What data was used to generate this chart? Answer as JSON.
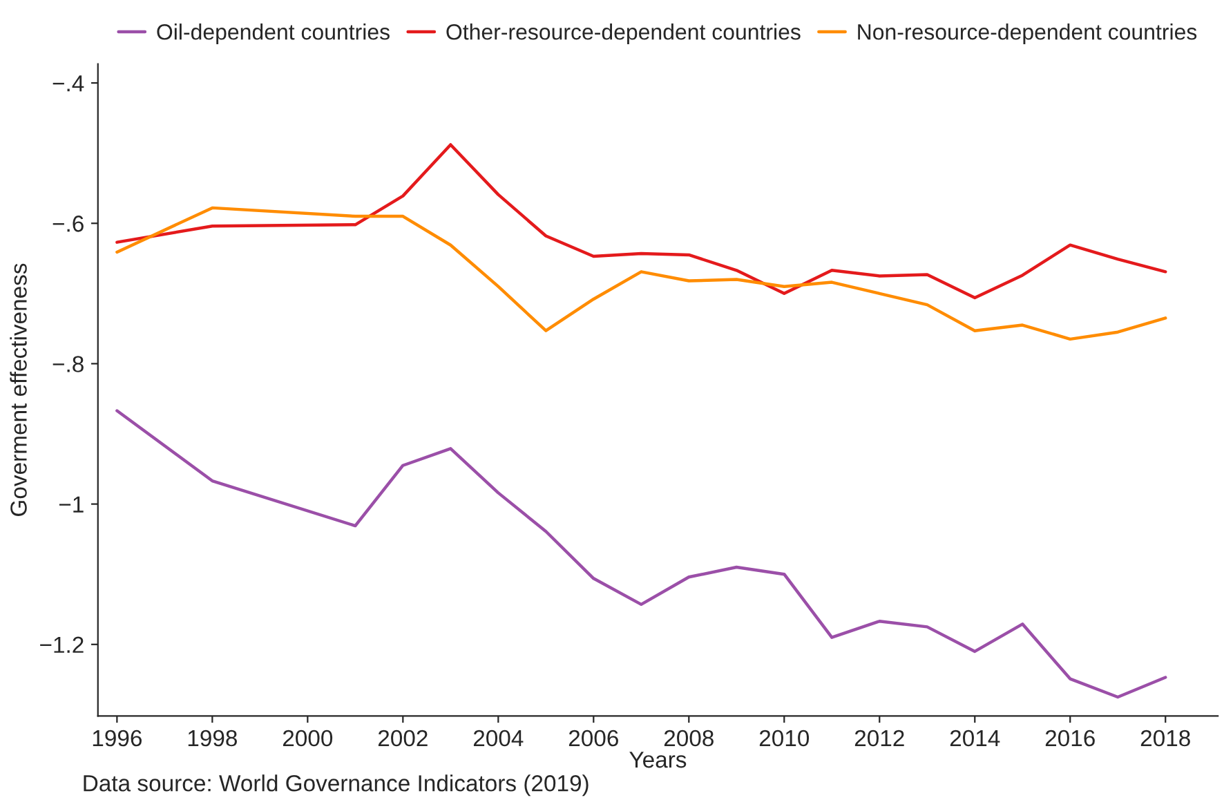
{
  "chart_data": {
    "type": "line",
    "xlabel": "Years",
    "ylabel": "Goverment effectiveness",
    "annotations": [
      "Data source: World Governance Indicators (2019)"
    ],
    "x": [
      1996,
      1998,
      2001,
      2002,
      2003,
      2004,
      2005,
      2006,
      2007,
      2008,
      2009,
      2010,
      2011,
      2012,
      2013,
      2014,
      2015,
      2016,
      2017,
      2018
    ],
    "series": [
      {
        "name": "Oil-dependent countries",
        "color": "#9b4fa8",
        "values": [
          -0.867,
          -0.967,
          -1.031,
          -0.945,
          -0.921,
          -0.984,
          -1.039,
          -1.106,
          -1.143,
          -1.104,
          -1.09,
          -1.1,
          -1.19,
          -1.167,
          -1.175,
          -1.21,
          -1.171,
          -1.249,
          -1.275,
          -1.247
        ]
      },
      {
        "name": "Other-resource-dependent countries",
        "color": "#e41a1c",
        "values": [
          -0.627,
          -0.604,
          -0.602,
          -0.561,
          -0.488,
          -0.559,
          -0.618,
          -0.647,
          -0.643,
          -0.645,
          -0.667,
          -0.7,
          -0.667,
          -0.675,
          -0.673,
          -0.706,
          -0.674,
          -0.631,
          -0.651,
          -0.669
        ]
      },
      {
        "name": "Non-resource-dependent countries",
        "color": "#ff8c00",
        "values": [
          -0.641,
          -0.578,
          -0.59,
          -0.59,
          -0.631,
          -0.69,
          -0.753,
          -0.708,
          -0.669,
          -0.682,
          -0.68,
          -0.69,
          -0.684,
          -0.7,
          -0.716,
          -0.753,
          -0.745,
          -0.765,
          -0.755,
          -0.735
        ]
      }
    ],
    "xlim": [
      1995.6,
      2019.1
    ],
    "ylim": [
      -1.302,
      -0.373
    ],
    "xticks": [
      1996,
      1998,
      2000,
      2002,
      2004,
      2006,
      2008,
      2010,
      2012,
      2014,
      2016,
      2018
    ],
    "yticks": [
      {
        "value": -0.4,
        "label": "−.4"
      },
      {
        "value": -0.6,
        "label": "−.6"
      },
      {
        "value": -0.8,
        "label": "−.8"
      },
      {
        "value": -1,
        "label": "−1"
      },
      {
        "value": -1.2,
        "label": "−1.2"
      }
    ],
    "grid": false,
    "legend": "top",
    "line_style": "solid",
    "marker": "none"
  }
}
